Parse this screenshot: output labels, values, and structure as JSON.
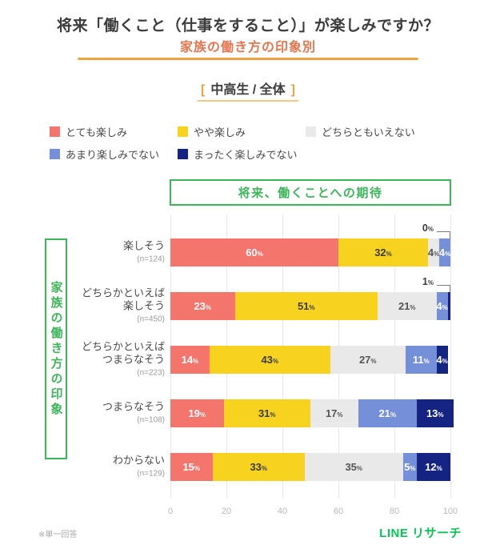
{
  "title": "将来「働くこと（仕事をすること）」が楽しみですか？",
  "subtitle": "家族の働き方の印象別",
  "group_label": {
    "open": "[",
    "text": "中高生 / 全体",
    "close": "]"
  },
  "legend": [
    {
      "label": "とても楽しみ",
      "color": "#F4756C"
    },
    {
      "label": "やや楽しみ",
      "color": "#F7D320"
    },
    {
      "label": "どちらともいえない",
      "color": "#E9E9E9"
    },
    {
      "label": "あまり楽しみでない",
      "color": "#7590D8"
    },
    {
      "label": "まったく楽しみでない",
      "color": "#152383"
    }
  ],
  "axis_header": "将来、働くことへの期待",
  "side_label": "家族の働き方の印象",
  "footnote": "※単一回答",
  "logo": "LINE リサーチ",
  "accent_colors": {
    "orange_rule": "#F0A33C",
    "subtitle_coral": "#E5764F",
    "box_green": "#3DB55A",
    "logo_green": "#06C755"
  },
  "chart_data": {
    "type": "bar",
    "orientation": "horizontal-stacked",
    "unit": "%",
    "xlim": [
      0,
      100
    ],
    "x_ticks": [
      0,
      20,
      40,
      60,
      80,
      100
    ],
    "grid": true,
    "legend_position": "top",
    "series_names": [
      "とても楽しみ",
      "やや楽しみ",
      "どちらともいえない",
      "あまり楽しみでない",
      "まったく楽しみでない"
    ],
    "colors": [
      "#F4756C",
      "#F7D320",
      "#E9E9E9",
      "#7590D8",
      "#152383"
    ],
    "label_colors": [
      "#FFFFFF",
      "#3C3C3C",
      "#555555",
      "#FFFFFF",
      "#FFFFFF"
    ],
    "rows": [
      {
        "label": "楽しそう",
        "n": "(n=124)",
        "values": [
          60,
          32,
          4,
          4,
          0
        ],
        "callout": true
      },
      {
        "label": "どちらかといえば\n楽しそう",
        "n": "(n=450)",
        "values": [
          23,
          51,
          21,
          4,
          1
        ],
        "callout": true
      },
      {
        "label": "どちらかといえば\nつまらなそう",
        "n": "(n=223)",
        "values": [
          14,
          43,
          27,
          11,
          4
        ],
        "callout": false
      },
      {
        "label": "つまらなそう",
        "n": "(n=108)",
        "values": [
          19,
          31,
          17,
          21,
          13
        ],
        "callout": false
      },
      {
        "label": "わからない",
        "n": "(n=129)",
        "values": [
          15,
          33,
          35,
          5,
          12
        ],
        "callout": false
      }
    ]
  }
}
